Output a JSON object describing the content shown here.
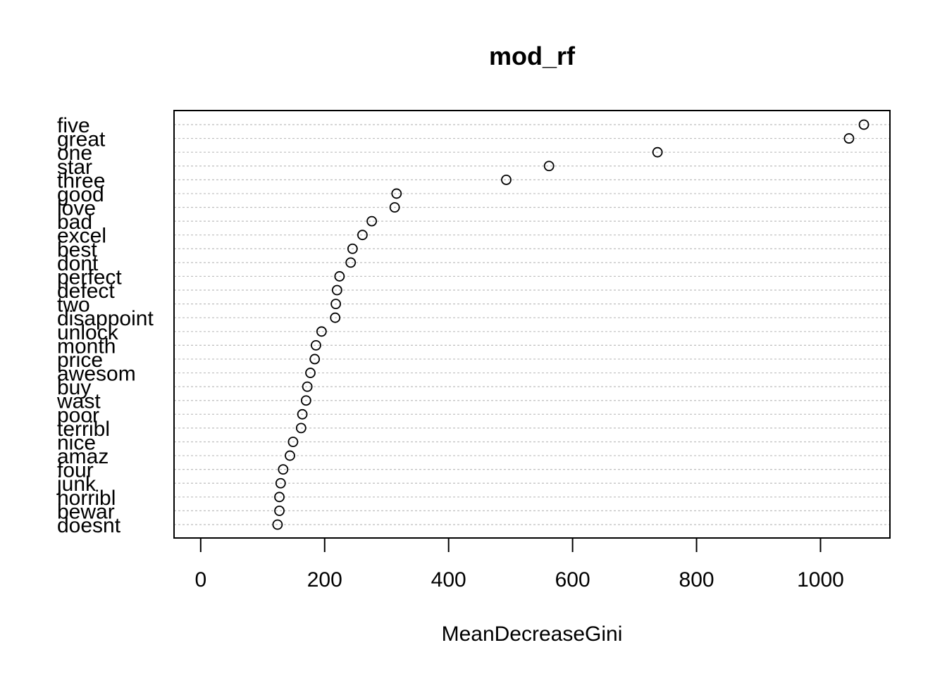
{
  "chart_data": {
    "type": "scatter",
    "subtype": "dotchart",
    "title": "mod_rf",
    "xlabel": "MeanDecreaseGini",
    "ylabel": "",
    "xlim": [
      -43,
      1112
    ],
    "xticks": [
      0,
      200,
      400,
      600,
      800,
      1000
    ],
    "grid": "dotted horizontal guide lines per row",
    "legend": "none",
    "colors": {
      "points": "#000000",
      "guides": "#bebebe",
      "frame": "#000000"
    },
    "categories": [
      "five",
      "great",
      "one",
      "star",
      "three",
      "good",
      "love",
      "bad",
      "excel",
      "best",
      "dont",
      "perfect",
      "defect",
      "two",
      "disappoint",
      "unlock",
      "month",
      "price",
      "awesom",
      "buy",
      "wast",
      "poor",
      "terribl",
      "nice",
      "amaz",
      "four",
      "junk",
      "horribl",
      "bewar",
      "doesnt"
    ],
    "values": [
      1070,
      1046,
      737,
      562,
      493,
      316,
      313,
      276,
      261,
      245,
      242,
      224,
      220,
      218,
      217,
      195,
      186,
      184,
      177,
      172,
      170,
      164,
      162,
      149,
      144,
      133,
      129,
      127,
      127,
      124
    ]
  }
}
